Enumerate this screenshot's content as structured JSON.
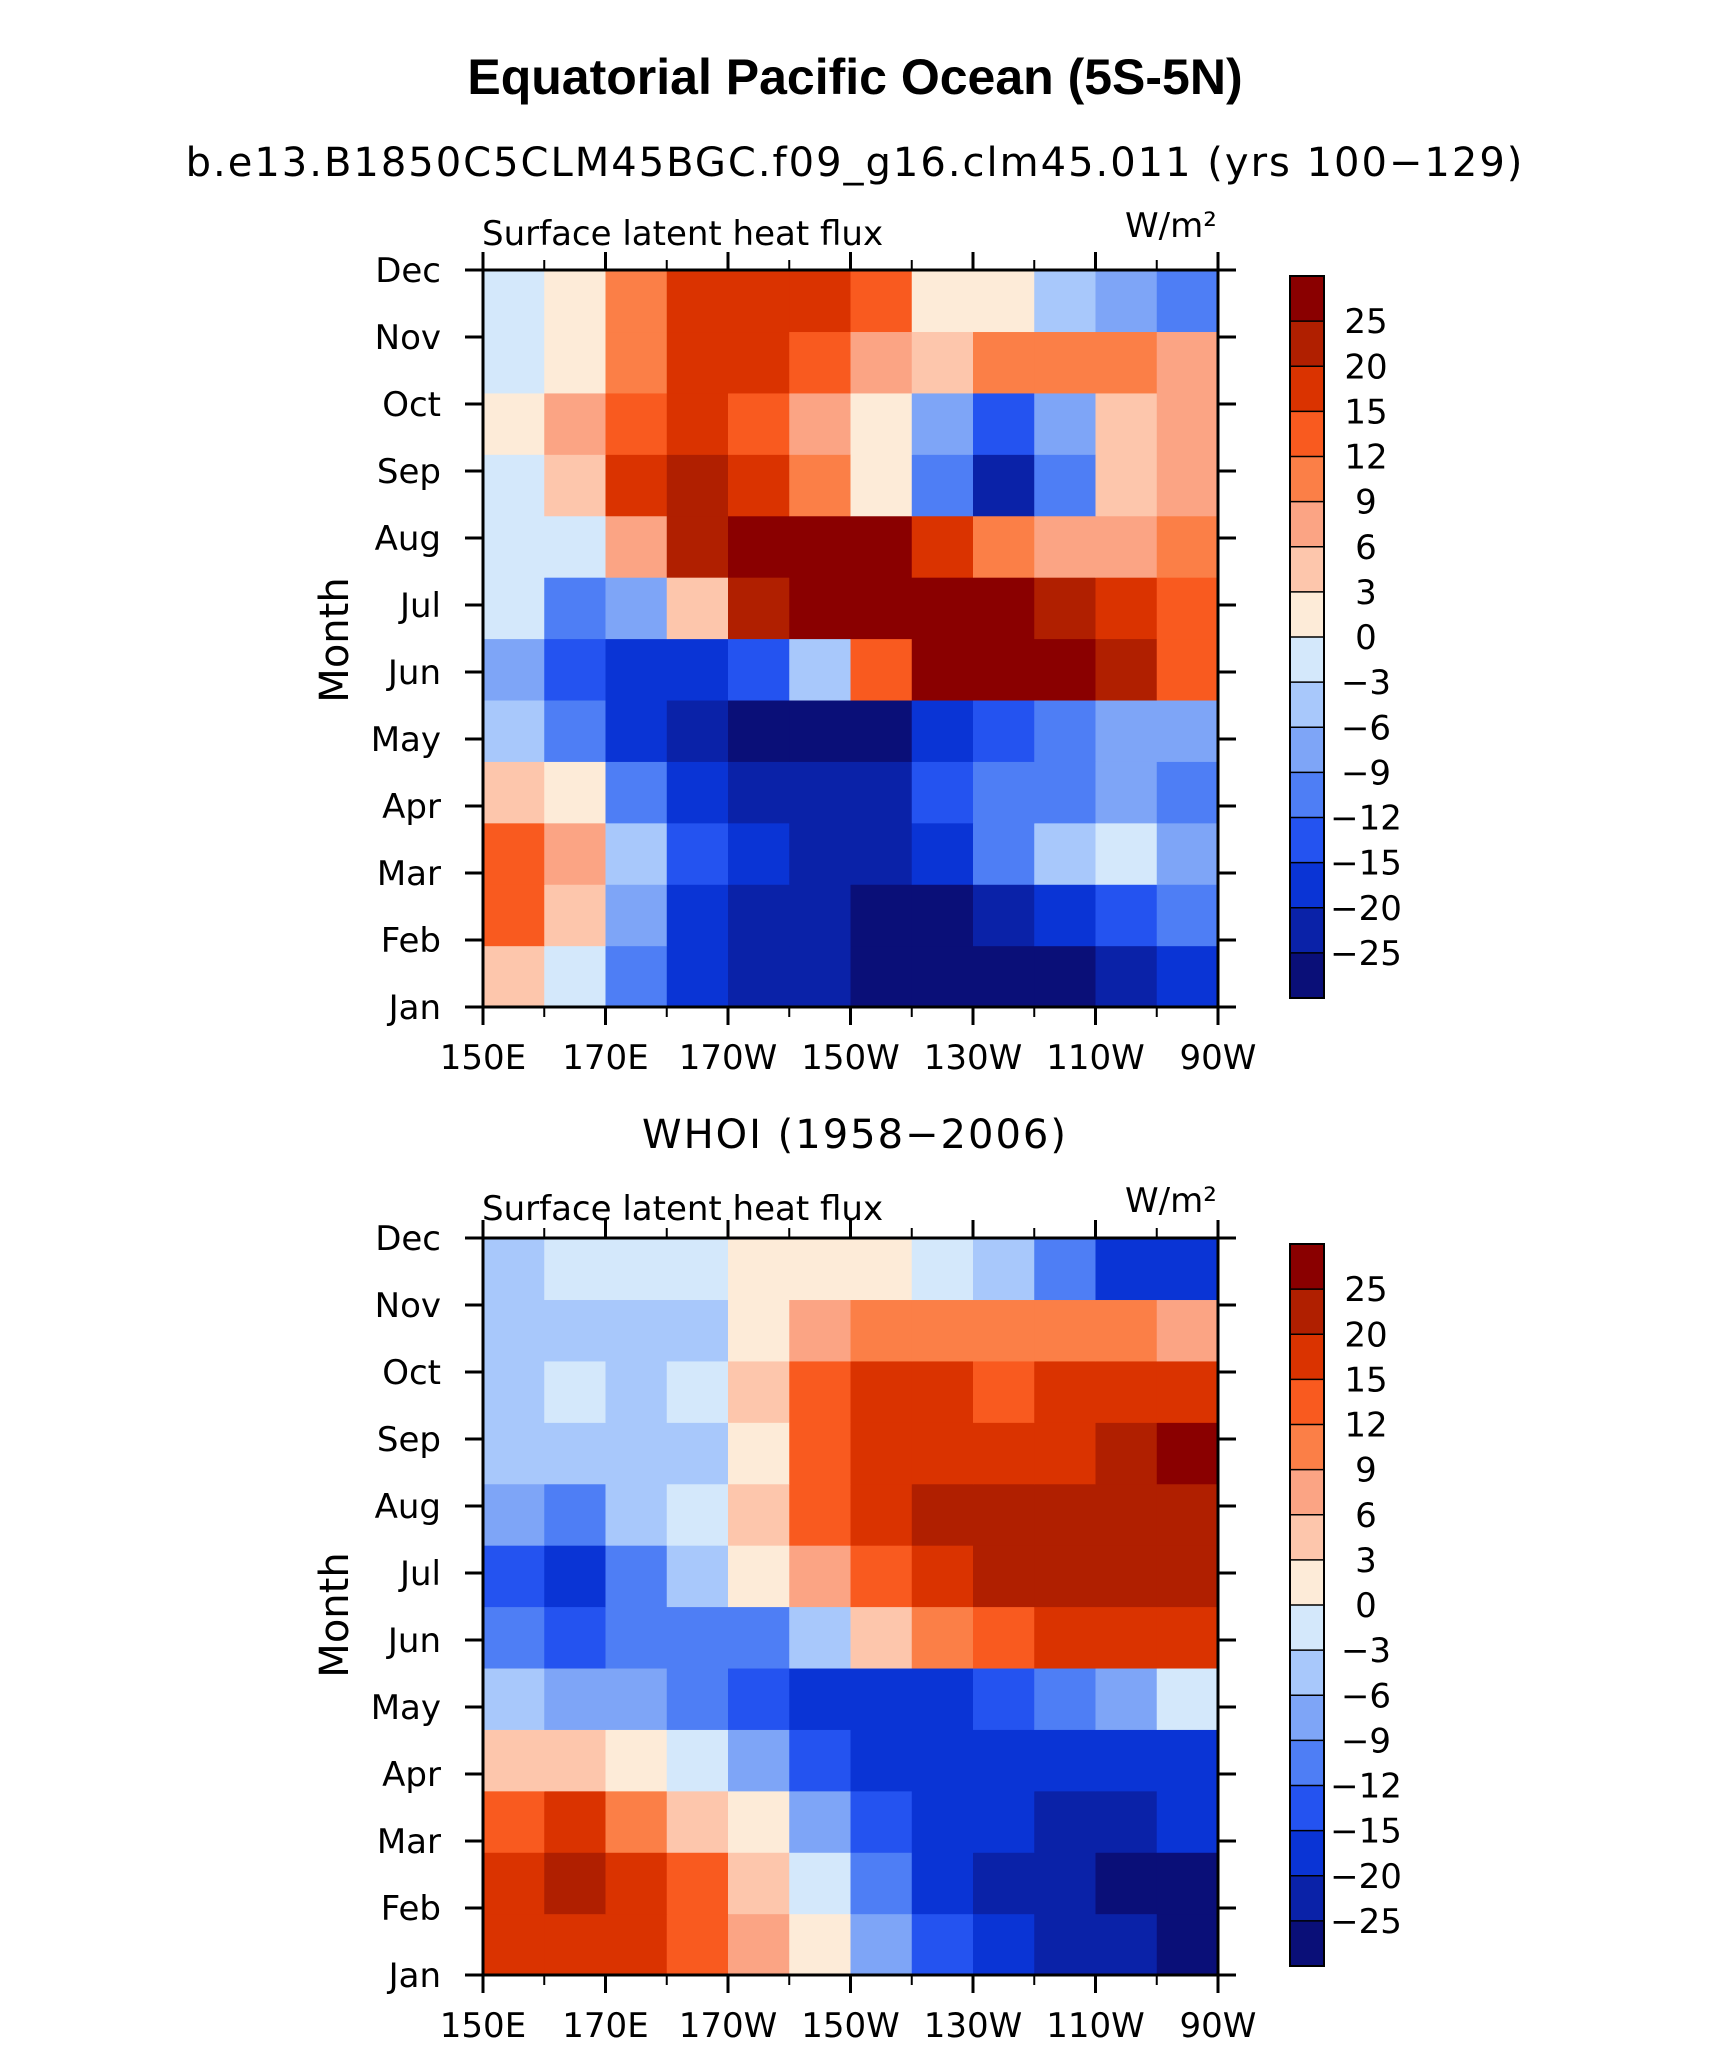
{
  "title": "Equatorial Pacific Ocean (5S-5N)",
  "subtitle": "b.e13.B1850C5CLM45BGC.f09_g16.clm45.011 (yrs 100−129)",
  "units_label": "W/m²",
  "colorbar": {
    "labels": [
      "25",
      "20",
      "15",
      "12",
      "9",
      "6",
      "3",
      "0",
      "−3",
      "−6",
      "−9",
      "−12",
      "−15",
      "−20",
      "−25"
    ],
    "colors": [
      "#8a0000",
      "#b01f00",
      "#da3300",
      "#f95a1f",
      "#fb7f47",
      "#fba484",
      "#fdc6ac",
      "#fdebd8",
      "#d4e8fb",
      "#a8c8fb",
      "#7ea5f7",
      "#4e7ef5",
      "#2453f0",
      "#0a34d5",
      "#0a22a8",
      "#0a0f78"
    ]
  },
  "chart_data": [
    {
      "type": "heatmap",
      "title": "",
      "panel_title": "",
      "left_label": "Surface latent heat flux",
      "right_label": "W/m²",
      "ylabel": "Month",
      "xlabel": "",
      "x": [
        "150E",
        "170E",
        "170W",
        "150W",
        "130W",
        "110W",
        "90W"
      ],
      "y": [
        "Jan",
        "Feb",
        "Mar",
        "Apr",
        "May",
        "Jun",
        "Jul",
        "Aug",
        "Sep",
        "Oct",
        "Nov",
        "Dec"
      ],
      "levels": [
        -25,
        -20,
        -15,
        -12,
        -9,
        -6,
        -3,
        0,
        3,
        6,
        9,
        12,
        15,
        20,
        25
      ],
      "values": [
        [
          4,
          -3,
          -12,
          -18,
          -22,
          -25,
          -28,
          -30,
          -30,
          -26,
          -22,
          -17
        ],
        [
          12,
          5,
          -8,
          -16,
          -21,
          -24,
          -26,
          -27,
          -22,
          -18,
          -14,
          -12
        ],
        [
          14,
          8,
          -4,
          -13,
          -19,
          -23,
          -24,
          -17,
          -10,
          -6,
          -3,
          -7
        ],
        [
          5,
          1,
          -10,
          -17,
          -21,
          -25,
          -24,
          -14,
          -12,
          -10,
          -9,
          -10
        ],
        [
          -6,
          -12,
          -19,
          -24,
          -27,
          -28,
          -27,
          -19,
          -14,
          -11,
          -9,
          -8
        ],
        [
          -7,
          -14,
          -20,
          -19,
          -15,
          -5,
          12,
          25,
          29,
          26,
          20,
          12
        ],
        [
          -2,
          -11,
          -8,
          4,
          20,
          27,
          30,
          30,
          27,
          22,
          18,
          12
        ],
        [
          -3,
          -3,
          6,
          22,
          28,
          30,
          28,
          18,
          10,
          7,
          8,
          10
        ],
        [
          -2,
          3,
          15,
          20,
          18,
          11,
          2,
          -12,
          -22,
          -10,
          3,
          7
        ],
        [
          0,
          6,
          14,
          16,
          12,
          6,
          0,
          -8,
          -14,
          -8,
          4,
          6
        ],
        [
          -3,
          2,
          11,
          16,
          15,
          14,
          8,
          5,
          9,
          11,
          10,
          6
        ],
        [
          -3,
          1,
          9,
          16,
          19,
          18,
          12,
          2,
          0,
          -4,
          -8,
          -12
        ]
      ]
    },
    {
      "type": "heatmap",
      "title": "",
      "panel_title": "WHOI (1958−2006)",
      "left_label": "Surface latent heat flux",
      "right_label": "W/m²",
      "ylabel": "Month",
      "xlabel": "",
      "x": [
        "150E",
        "170E",
        "170W",
        "150W",
        "130W",
        "110W",
        "90W"
      ],
      "y": [
        "Jan",
        "Feb",
        "Mar",
        "Apr",
        "May",
        "Jun",
        "Jul",
        "Aug",
        "Sep",
        "Oct",
        "Nov",
        "Dec"
      ],
      "levels": [
        -25,
        -20,
        -15,
        -12,
        -9,
        -6,
        -3,
        0,
        3,
        6,
        9,
        12,
        15,
        20,
        25
      ],
      "values": [
        [
          16,
          19,
          19,
          14,
          7,
          2,
          -8,
          -14,
          -18,
          -22,
          -25,
          -27
        ],
        [
          18,
          21,
          17,
          12,
          5,
          -3,
          -12,
          -17,
          -21,
          -24,
          -26,
          -26
        ],
        [
          13,
          15,
          10,
          5,
          0,
          -7,
          -14,
          -18,
          -20,
          -22,
          -22,
          -20
        ],
        [
          4,
          3,
          2,
          -2,
          -8,
          -13,
          -17,
          -19,
          -19,
          -19,
          -18,
          -16
        ],
        [
          -6,
          -8,
          -7,
          -10,
          -14,
          -17,
          -19,
          -18,
          -15,
          -12,
          -8,
          -3
        ],
        [
          -12,
          -14,
          -12,
          -12,
          -10,
          -4,
          4,
          10,
          14,
          16,
          17,
          17
        ],
        [
          -14,
          -16,
          -10,
          -5,
          0,
          6,
          14,
          18,
          20,
          21,
          21,
          21
        ],
        [
          -9,
          -12,
          -4,
          -2,
          4,
          12,
          18,
          21,
          20,
          20,
          22,
          22
        ],
        [
          -6,
          -6,
          -5,
          -4,
          2,
          13,
          17,
          18,
          17,
          19,
          23,
          26
        ],
        [
          -4,
          -2,
          -4,
          -3,
          3,
          12,
          16,
          16,
          14,
          16,
          18,
          18
        ],
        [
          -4,
          -5,
          -5,
          -4,
          1,
          8,
          11,
          10,
          9,
          10,
          9,
          6
        ],
        [
          -4,
          -3,
          -1,
          -1,
          1,
          2,
          0,
          -3,
          -6,
          -12,
          -17,
          -20
        ]
      ]
    }
  ]
}
